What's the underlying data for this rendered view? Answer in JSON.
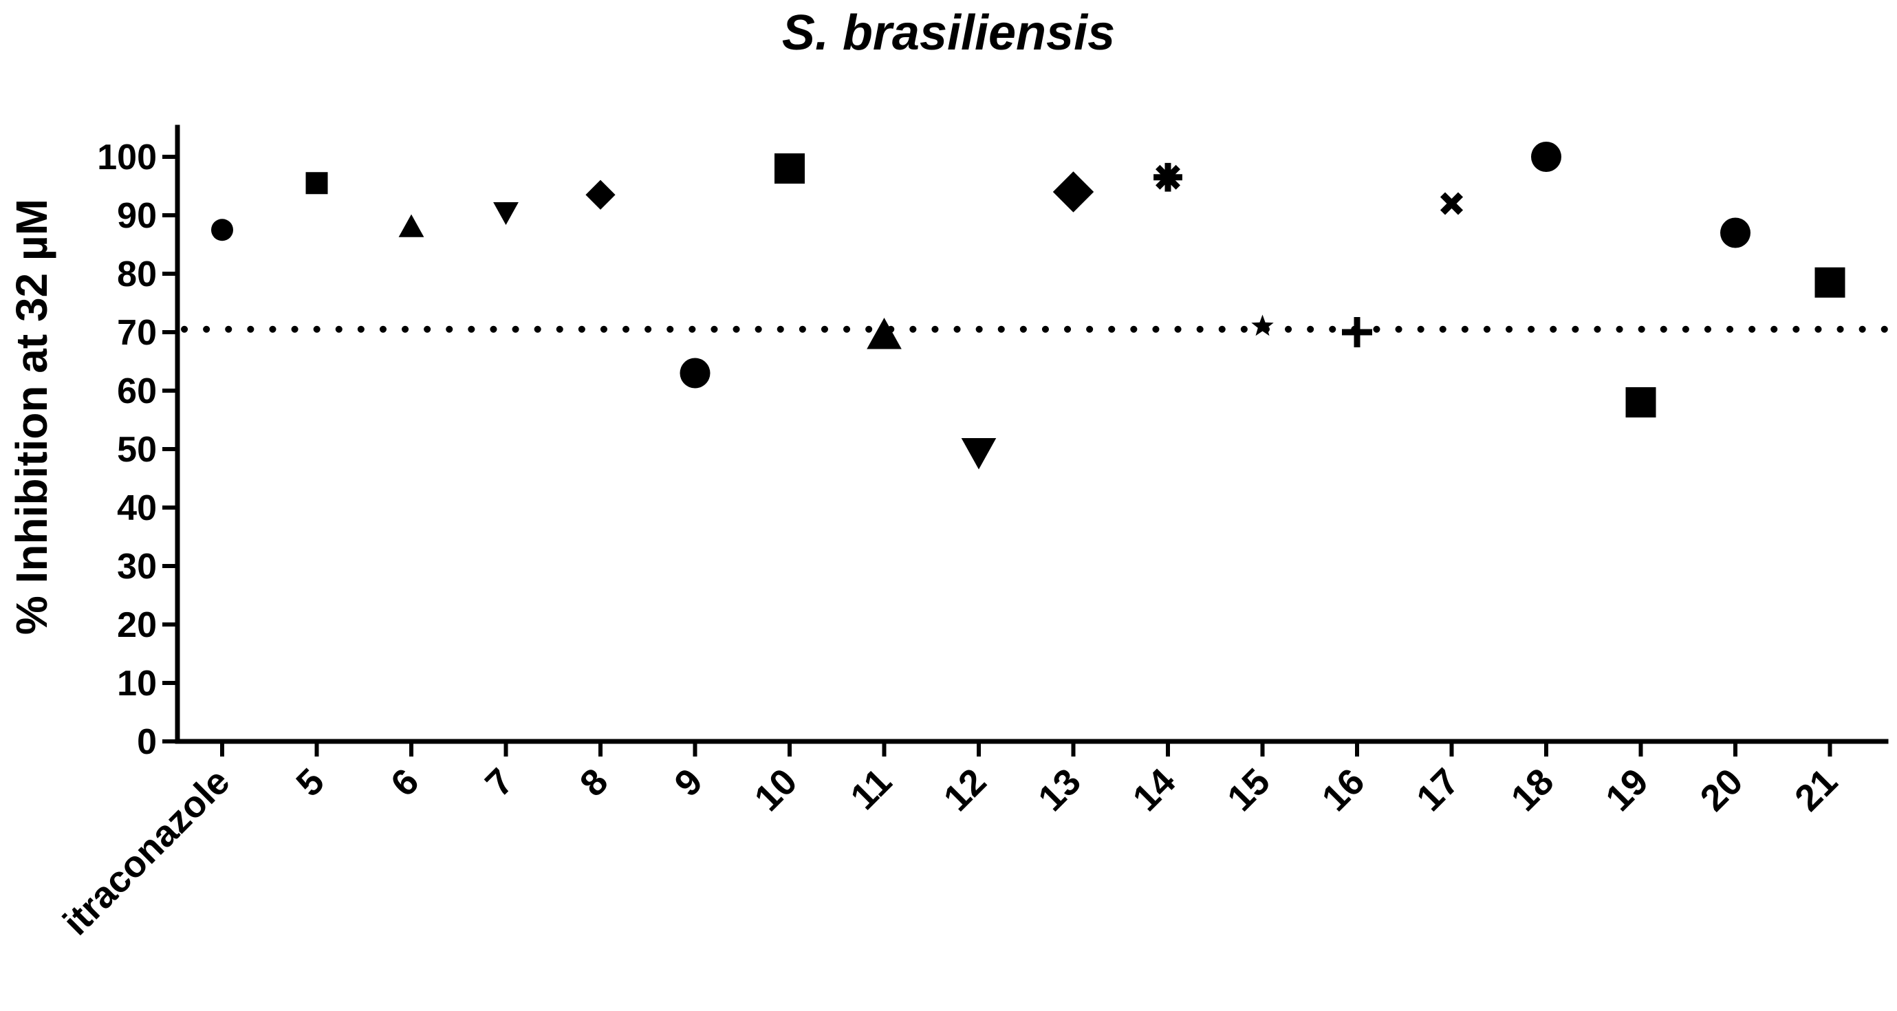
{
  "chart_data": {
    "type": "scatter",
    "title": "S. brasiliensis",
    "ylabel": "% Inhibition at 32 µM",
    "xlabel": "",
    "ylim": [
      0,
      105
    ],
    "yticks": [
      0,
      10,
      20,
      30,
      40,
      50,
      60,
      70,
      80,
      90,
      100
    ],
    "grid": false,
    "reference_line": {
      "y": 70.5,
      "style": "dotted"
    },
    "categories": [
      "itraconazole",
      "5",
      "6",
      "7",
      "8",
      "9",
      "10",
      "11",
      "12",
      "13",
      "14",
      "15",
      "16",
      "17",
      "18",
      "19",
      "20",
      "21"
    ],
    "points": [
      {
        "x": "itraconazole",
        "y": 87.5,
        "marker": "circle",
        "size": "small"
      },
      {
        "x": "5",
        "y": 95.5,
        "marker": "square",
        "size": "small"
      },
      {
        "x": "6",
        "y": 88.0,
        "marker": "triangle-up",
        "size": "small"
      },
      {
        "x": "7",
        "y": 90.5,
        "marker": "triangle-down",
        "size": "small"
      },
      {
        "x": "8",
        "y": 93.5,
        "marker": "diamond",
        "size": "small"
      },
      {
        "x": "9",
        "y": 63.0,
        "marker": "circle",
        "size": "large"
      },
      {
        "x": "10",
        "y": 98.0,
        "marker": "square",
        "size": "large"
      },
      {
        "x": "11",
        "y": 69.5,
        "marker": "triangle-up",
        "size": "large"
      },
      {
        "x": "12",
        "y": 49.5,
        "marker": "triangle-down",
        "size": "large"
      },
      {
        "x": "13",
        "y": 94.0,
        "marker": "diamond",
        "size": "large"
      },
      {
        "x": "14",
        "y": 96.5,
        "marker": "asterisk",
        "size": "large"
      },
      {
        "x": "15",
        "y": 71.0,
        "marker": "star",
        "size": "small"
      },
      {
        "x": "16",
        "y": 70.0,
        "marker": "plus",
        "size": "large"
      },
      {
        "x": "17",
        "y": 92.0,
        "marker": "cross",
        "size": "small"
      },
      {
        "x": "18",
        "y": 100.0,
        "marker": "circle",
        "size": "large"
      },
      {
        "x": "19",
        "y": 58.0,
        "marker": "square",
        "size": "large"
      },
      {
        "x": "20",
        "y": 87.0,
        "marker": "circle",
        "size": "large"
      },
      {
        "x": "21",
        "y": 78.5,
        "marker": "square",
        "size": "large"
      }
    ]
  }
}
